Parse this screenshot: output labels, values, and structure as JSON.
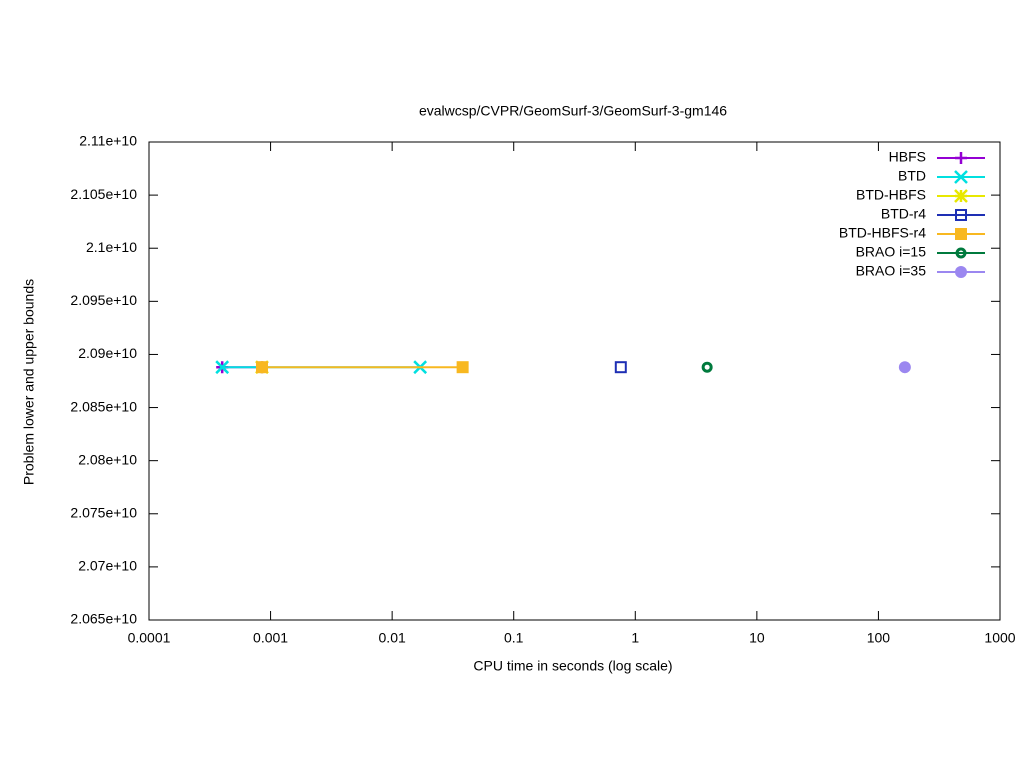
{
  "chart_data": {
    "type": "line",
    "title": "evalwcsp/CVPR/GeomSurf-3/GeomSurf-3-gm146",
    "x_label": "CPU time in seconds (log scale)",
    "y_label": "Problem lower and upper bounds",
    "x_log": true,
    "legend": "top-right",
    "xlim": [
      0.0001,
      1000
    ],
    "xticks": [
      0.0001,
      0.001,
      0.01,
      0.1,
      1,
      10,
      100,
      1000
    ],
    "ylim": [
      20650000000,
      21100000000
    ],
    "yticks": [
      {
        "value": 20650000000,
        "label": "2.065e+10"
      },
      {
        "value": 20700000000,
        "label": "2.07e+10"
      },
      {
        "value": 20750000000,
        "label": "2.075e+10"
      },
      {
        "value": 20800000000,
        "label": "2.08e+10"
      },
      {
        "value": 20850000000,
        "label": "2.085e+10"
      },
      {
        "value": 20900000000,
        "label": "2.09e+10"
      },
      {
        "value": 20950000000,
        "label": "2.095e+10"
      },
      {
        "value": 21000000000,
        "label": "2.1e+10"
      },
      {
        "value": 21050000000,
        "label": "2.105e+10"
      },
      {
        "value": 21100000000,
        "label": "2.11e+10"
      }
    ],
    "series": [
      {
        "name": "HBFS",
        "color": "#9400d3",
        "marker": "plus",
        "x": [
          0.0004,
          0.00085
        ],
        "values": [
          20888000000,
          20888000000
        ]
      },
      {
        "name": "BTD",
        "color": "#00e0e0",
        "marker": "cross",
        "x": [
          0.0004,
          0.017
        ],
        "values": [
          20888000000,
          20888000000
        ]
      },
      {
        "name": "BTD-HBFS",
        "color": "#e8e800",
        "marker": "star",
        "x": [
          0.00085
        ],
        "values": [
          20888000000
        ]
      },
      {
        "name": "BTD-r4",
        "color": "#1e2fb4",
        "marker": "open-square",
        "x": [
          0.76
        ],
        "values": [
          20888000000
        ]
      },
      {
        "name": "BTD-HBFS-r4",
        "color": "#f8b820",
        "marker": "square",
        "x": [
          0.00085,
          0.038
        ],
        "values": [
          20888000000,
          20888000000
        ]
      },
      {
        "name": "BRAO i=15",
        "color": "#007a3d",
        "marker": "ring",
        "x": [
          3.9
        ],
        "values": [
          20888000000
        ]
      },
      {
        "name": "BRAO i=35",
        "color": "#9b87f0",
        "marker": "circle",
        "x": [
          165
        ],
        "values": [
          20888000000
        ]
      }
    ]
  }
}
